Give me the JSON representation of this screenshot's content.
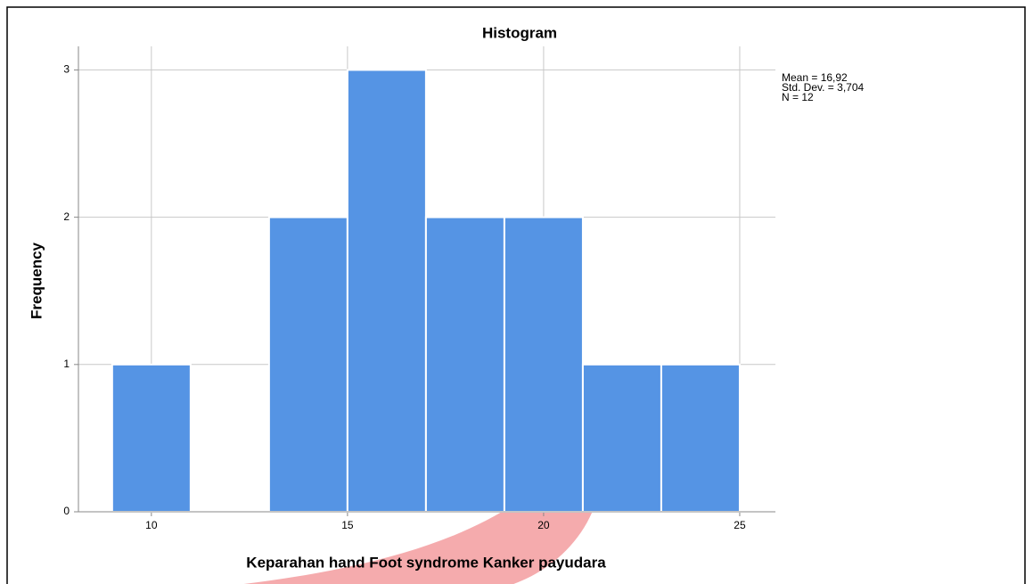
{
  "chart_data": {
    "type": "histogram",
    "title": "Histogram",
    "x_label": "Keparahan hand Foot syndrome Kanker payudara",
    "y_label": "Frequency",
    "bins": [
      9,
      11,
      13,
      15,
      17,
      19,
      21,
      23,
      25
    ],
    "values": [
      1,
      0,
      2,
      3,
      2,
      2,
      1,
      1
    ],
    "color": "#5594e4",
    "xlim": [
      8.14,
      25.91
    ],
    "xticks": [
      10,
      15,
      20,
      25
    ],
    "ylim": [
      0,
      3.16
    ],
    "yticks": [
      0,
      1,
      2,
      3
    ],
    "grid": true,
    "annotations": [
      "Mean = 16,92",
      "Std. Dev. = 3,704",
      "N = 12"
    ]
  }
}
